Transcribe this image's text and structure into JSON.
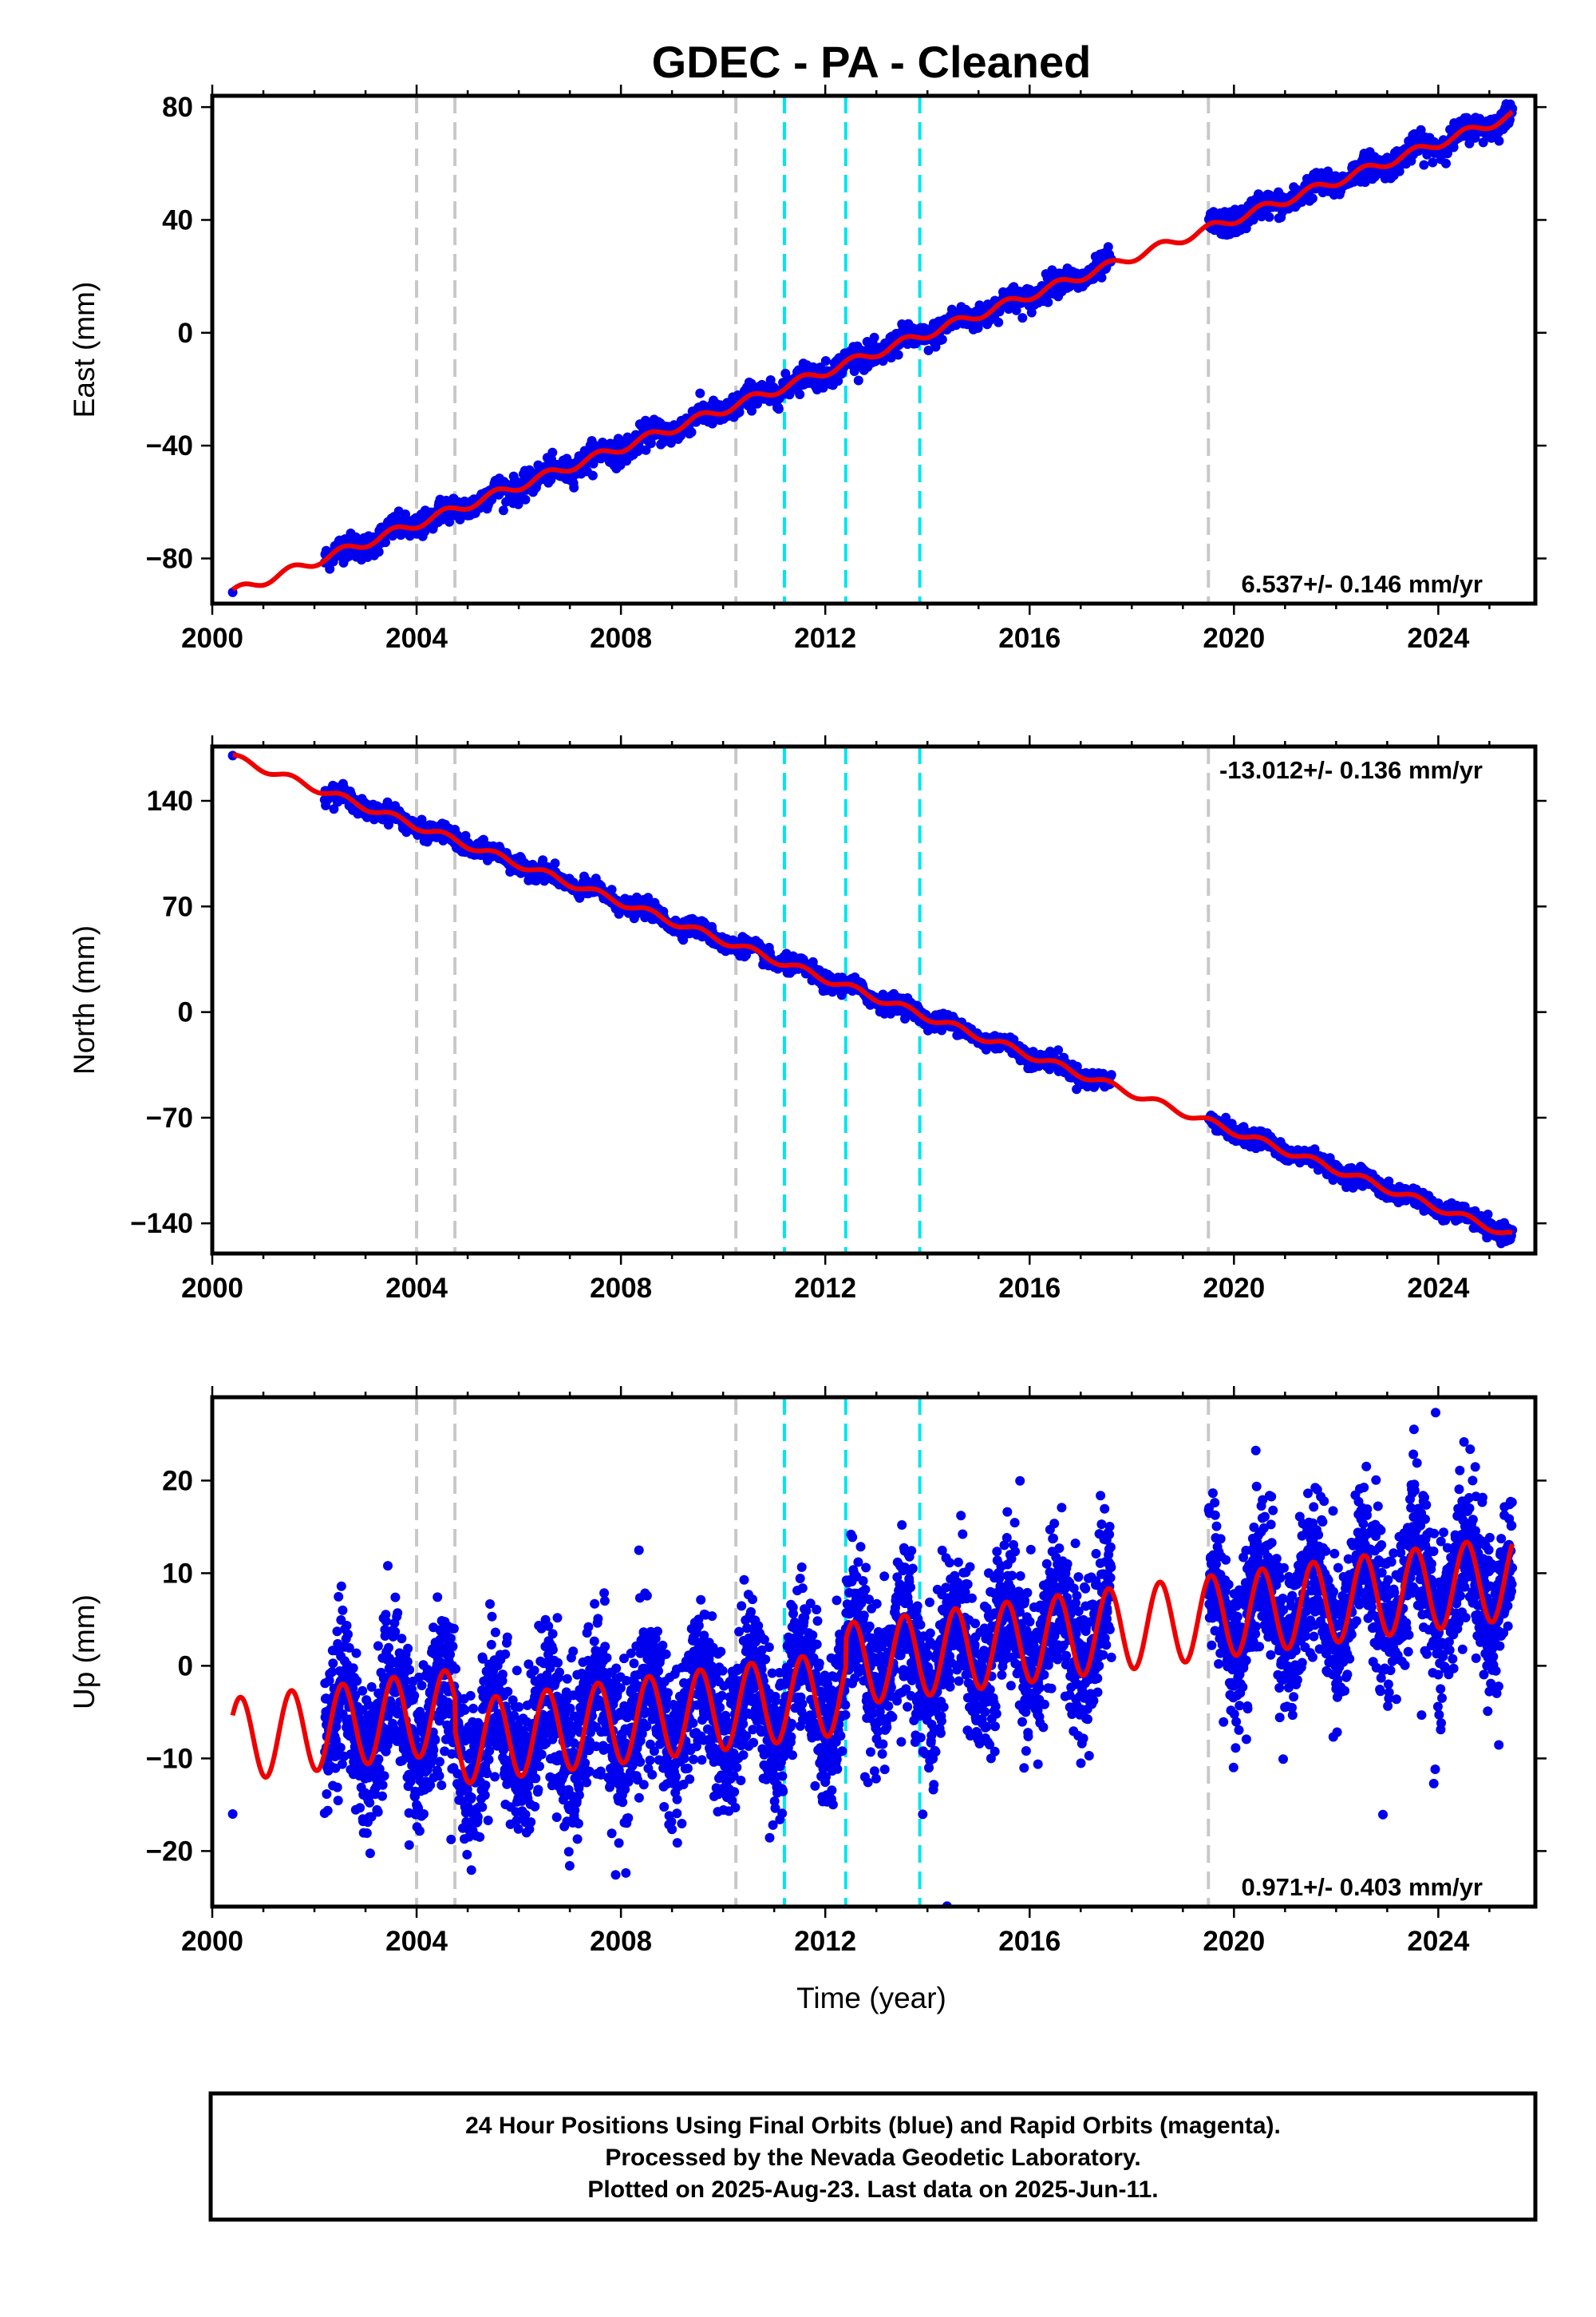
{
  "chart_data": {
    "title": "GDEC  - PA - Cleaned",
    "xlabel": "Time (year)",
    "xlim": [
      2000.0,
      2025.9
    ],
    "xticks": [
      "2000",
      "2004",
      "2008",
      "2012",
      "2016",
      "2020",
      "2024"
    ],
    "x_tick_values": [
      2000,
      2004,
      2008,
      2012,
      2016,
      2020,
      2024
    ],
    "event_lines_gray": [
      2004.0,
      2004.75,
      2010.25,
      2019.5
    ],
    "event_lines_cyan": [
      2011.2,
      2012.4,
      2013.85
    ],
    "series_colors": {
      "final_orbits": "#0000ee",
      "rapid_orbits": "#ee00ee",
      "model": "#ee0000",
      "gray_event": "#c8c8c8",
      "cyan_event": "#00e5ee"
    },
    "panels": [
      {
        "type": "scatter",
        "ylabel": "East (mm)",
        "ylim": [
          -96,
          84
        ],
        "yticks": [
          "80",
          "40",
          "0",
          "−40",
          "−80"
        ],
        "y_tick_values": [
          80,
          40,
          0,
          -40,
          -80
        ],
        "rate_label": "6.537+/- 0.146 mm/yr",
        "rate_position": "bottom-right",
        "first_point": [
          2000.4,
          -92
        ],
        "data_start": 2002.2,
        "data_gap": [
          2017.6,
          2019.5
        ],
        "last_data": 2025.45,
        "trend": {
          "start": [
            2000.4,
            -92
          ],
          "end": [
            2025.45,
            77
          ]
        },
        "scatter_noise_mm": 2.2
      },
      {
        "type": "scatter",
        "ylabel": "North (mm)",
        "ylim": [
          -160,
          176
        ],
        "yticks": [
          "140",
          "70",
          "0",
          "−70",
          "−140"
        ],
        "y_tick_values": [
          140,
          70,
          0,
          -70,
          -140
        ],
        "rate_label": "-13.012+/- 0.136 mm/yr",
        "rate_position": "top-right",
        "first_point": [
          2000.4,
          170
        ],
        "data_start": 2002.2,
        "data_gap": [
          2017.6,
          2019.5
        ],
        "last_data": 2025.45,
        "trend": {
          "start": [
            2000.4,
            169
          ],
          "end": [
            2025.45,
            -148
          ]
        },
        "scatter_noise_mm": 2.8
      },
      {
        "type": "scatter",
        "ylabel": "Up (mm)",
        "ylim": [
          -26,
          29
        ],
        "yticks": [
          "20",
          "10",
          "0",
          "−10",
          "−20"
        ],
        "y_tick_values": [
          20,
          10,
          0,
          -10,
          -20
        ],
        "rate_label": "0.971+/- 0.403 mm/yr",
        "rate_position": "bottom-right",
        "first_point": [
          2000.4,
          -16
        ],
        "data_start": 2002.2,
        "data_gap": [
          2017.6,
          2019.5
        ],
        "last_data": 2025.45,
        "trend": {
          "start": [
            2000.4,
            -8
          ],
          "end": [
            2025.45,
            10
          ]
        },
        "seasonal_amplitude_mm": 4.5,
        "scatter_noise_mm": 4.0
      }
    ],
    "footnote": [
      "24 Hour Positions Using Final Orbits (blue) and Rapid Orbits (magenta).",
      "Processed by the Nevada Geodetic Laboratory.",
      "Plotted on 2025-Aug-23. Last data on 2025-Jun-11."
    ]
  }
}
